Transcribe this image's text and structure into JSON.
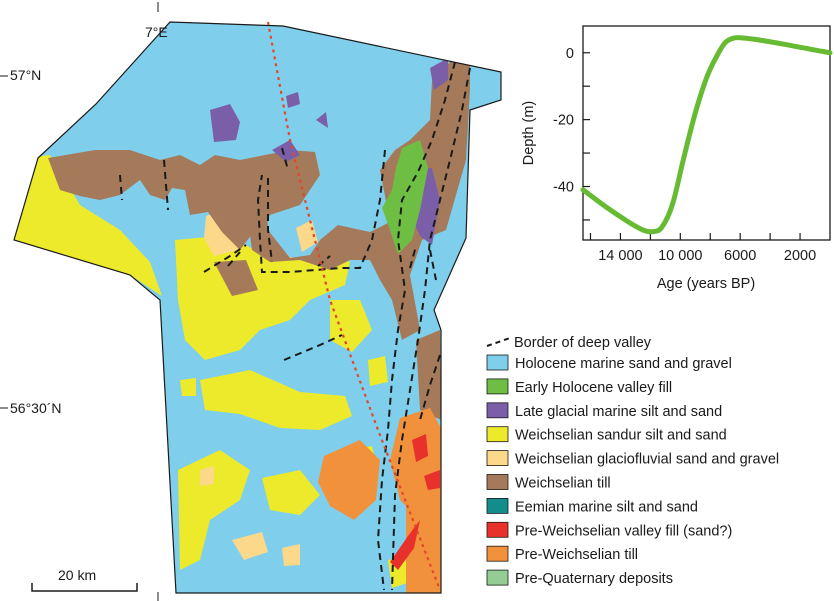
{
  "colors": {
    "holocene_marine": "#7fcfec",
    "early_holocene_fill": "#6fbe44",
    "late_glacial": "#7a5fa8",
    "sandur": "#ecea2a",
    "glaciofluvial": "#fbd88a",
    "till": "#a57a5a",
    "eemian": "#138c8c",
    "pre_weichselian_fill": "#e8312a",
    "pre_weichselian_till": "#f2913c",
    "pre_quaternary": "#93cd93",
    "curve": "#66bb33",
    "profile_line": "#e0482e"
  },
  "map": {
    "lon_label": "7°E",
    "lat_labels": [
      "57°N",
      "56°30´N"
    ],
    "scale_label": "20 km"
  },
  "legend": {
    "valley_border": "Border of deep valley",
    "units": [
      {
        "label": "Holocene marine sand and gravel",
        "color": "#7fcfec"
      },
      {
        "label": "Early Holocene valley fill",
        "color": "#6fbe44"
      },
      {
        "label": "Late glacial marine silt and sand",
        "color": "#7a5fa8"
      },
      {
        "label": "Weichselian sandur silt and sand",
        "color": "#ecea2a"
      },
      {
        "label": "Weichselian glaciofluvial sand and gravel",
        "color": "#fbd88a"
      },
      {
        "label": "Weichselian till",
        "color": "#a57a5a"
      },
      {
        "label": "Eemian marine silt and sand",
        "color": "#138c8c"
      },
      {
        "label": "Pre-Weichselian valley fill (sand?)",
        "color": "#e8312a"
      },
      {
        "label": "Pre-Weichselian till",
        "color": "#f2913c"
      },
      {
        "label": "Pre-Quaternary deposits",
        "color": "#93cd93"
      }
    ]
  },
  "chart_data": {
    "type": "line",
    "xlabel": "Age (years BP)",
    "ylabel": "Depth (m)",
    "x_reversed": true,
    "xlim": [
      16500,
      0
    ],
    "ylim": [
      -56,
      8
    ],
    "xticks": [
      16000,
      14000,
      12000,
      10000,
      8000,
      6000,
      4000,
      2000
    ],
    "xtick_labels": {
      "14000": "14 000",
      "10000": "10 000",
      "6000": "6000",
      "2000": "2000"
    },
    "yticks": [
      0,
      -10,
      -20,
      -30,
      -40,
      -50
    ],
    "ytick_labels": {
      "0": "0",
      "-20": "-20",
      "-40": "-40"
    },
    "series": [
      {
        "color": "#66bb33",
        "points": [
          [
            16500,
            -41
          ],
          [
            15000,
            -46
          ],
          [
            13500,
            -50.5
          ],
          [
            12500,
            -53
          ],
          [
            11800,
            -53.5
          ],
          [
            11200,
            -52
          ],
          [
            10500,
            -45
          ],
          [
            9800,
            -32
          ],
          [
            9000,
            -18
          ],
          [
            8200,
            -7
          ],
          [
            7500,
            -0.5
          ],
          [
            7000,
            3
          ],
          [
            6500,
            4.3
          ],
          [
            6000,
            4.5
          ],
          [
            5000,
            4
          ],
          [
            3000,
            2.5
          ],
          [
            1000,
            0.8
          ],
          [
            0,
            0
          ]
        ]
      }
    ]
  }
}
